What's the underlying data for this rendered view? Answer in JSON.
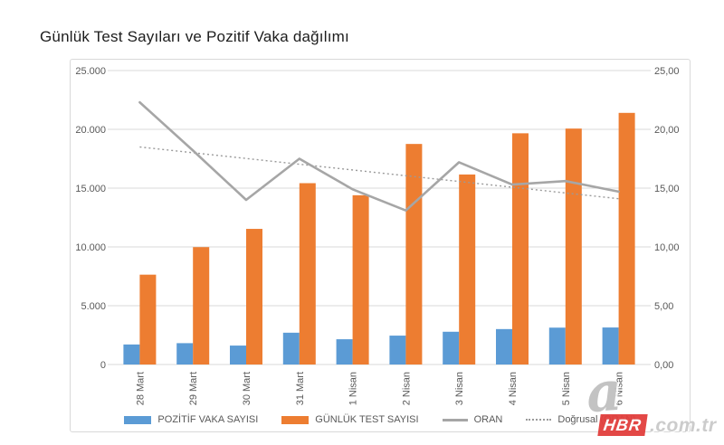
{
  "title": "Günlük Test Sayıları ve Pozitif Vaka dağılımı",
  "watermark": {
    "letter": "a",
    "brand": "HBR",
    "domain": ".com.tr"
  },
  "colors": {
    "bar_positive": "#5B9BD5",
    "bar_tests": "#ED7D31",
    "line_oran": "#a6a6a6",
    "trendline": "#9a9a9a",
    "gridline": "#d9d9d9",
    "axis_text": "#595959",
    "watermark_red": "#e23f3d"
  },
  "chart_data": {
    "type": "combo",
    "title": "Günlük Test Sayıları ve Pozitif Vaka dağılımı",
    "categories": [
      "28 Mart",
      "29 Mart",
      "30 Mart",
      "31 Mart",
      "1 Nisan",
      "2 Nisan",
      "3 Nisan",
      "4 Nisan",
      "5 Nisan",
      "6 Nisan"
    ],
    "series": [
      {
        "name": "POZİTİF VAKA SAYISI",
        "type": "bar",
        "axis": "left",
        "color": "#5B9BD5",
        "values": [
          1704,
          1815,
          1610,
          2704,
          2148,
          2456,
          2786,
          3013,
          3135,
          3148
        ]
      },
      {
        "name": "GÜNLÜK TEST SAYISI",
        "type": "bar",
        "axis": "left",
        "color": "#ED7D31",
        "values": [
          7641,
          9982,
          11535,
          15422,
          14396,
          18757,
          16160,
          19664,
          20065,
          21400
        ]
      },
      {
        "name": "ORAN",
        "type": "line",
        "axis": "right",
        "color": "#a6a6a6",
        "values": [
          22.3,
          18.2,
          14.0,
          17.5,
          14.9,
          13.1,
          17.2,
          15.3,
          15.6,
          14.7
        ]
      },
      {
        "name": "Doğrusal (ORAN)",
        "type": "trendline",
        "axis": "right",
        "color": "#9a9a9a",
        "style": "dotted",
        "start": 18.5,
        "end": 14.1
      }
    ],
    "left_axis": {
      "min": 0,
      "max": 25000,
      "ticks": [
        "0",
        "5.000",
        "10.000",
        "15.000",
        "20.000",
        "25.000"
      ]
    },
    "right_axis": {
      "min": 0,
      "max": 25,
      "ticks": [
        "0,00",
        "5,00",
        "10,00",
        "15,00",
        "20,00",
        "25,00"
      ]
    },
    "grid": true,
    "legend_position": "bottom"
  }
}
